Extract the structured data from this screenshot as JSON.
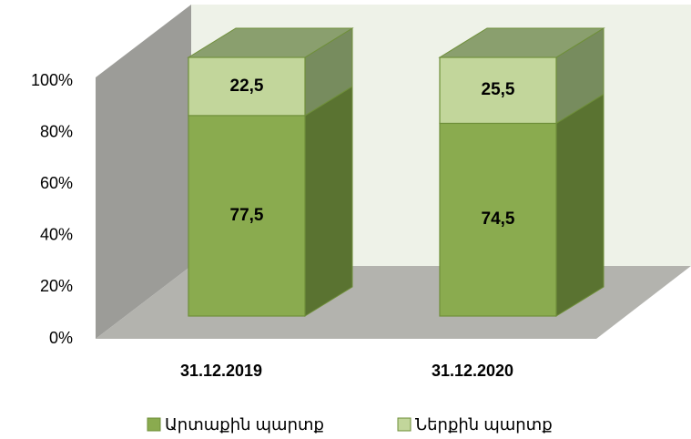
{
  "chart_data": {
    "type": "bar3d_stacked",
    "categories": [
      "31.12.2019",
      "31.12.2020"
    ],
    "series": [
      {
        "name": "Արտաքին պարտք",
        "color": "#8aab4f",
        "values": [
          77.5,
          74.5
        ],
        "value_labels": [
          "77,5",
          "74,5"
        ]
      },
      {
        "name": "Ներքին պարտք",
        "color": "#c2d69b",
        "values": [
          22.5,
          25.5
        ],
        "value_labels": [
          "22,5",
          "25,5"
        ]
      }
    ],
    "ylim": [
      0,
      100
    ],
    "yticks": [
      {
        "value": 0,
        "label": "0%"
      },
      {
        "value": 20,
        "label": "20%"
      },
      {
        "value": 40,
        "label": "40%"
      },
      {
        "value": 60,
        "label": "60%"
      },
      {
        "value": 80,
        "label": "80%"
      },
      {
        "value": 100,
        "label": "100%"
      }
    ],
    "legend": "bottom"
  }
}
